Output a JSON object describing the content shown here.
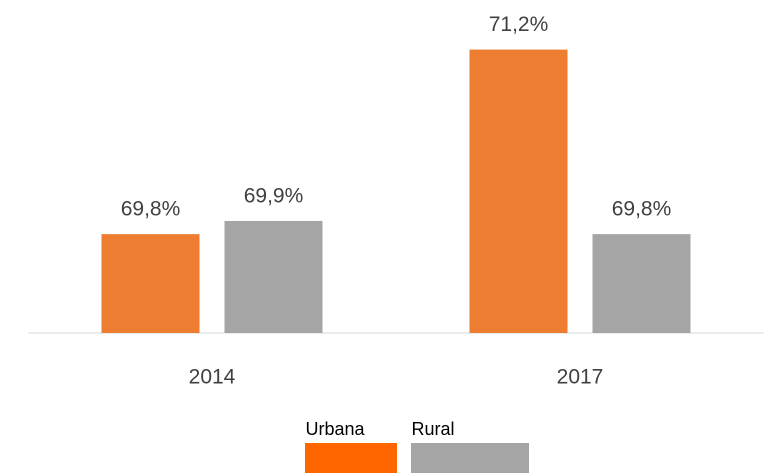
{
  "chart_data": {
    "type": "bar",
    "categories": [
      "2014",
      "2017"
    ],
    "series": [
      {
        "name": "Urbana",
        "color": "#ED7D31",
        "legend_color": "#FF6600",
        "values": [
          69.8,
          71.2
        ],
        "value_labels": [
          "69,8%",
          "71,2%"
        ]
      },
      {
        "name": "Rural",
        "color": "#A5A5A5",
        "legend_color": "#A5A5A5",
        "values": [
          69.9,
          69.8
        ],
        "value_labels": [
          "69,9%",
          "69,8%"
        ]
      }
    ],
    "ylim": [
      69.05,
      71.25
    ]
  }
}
